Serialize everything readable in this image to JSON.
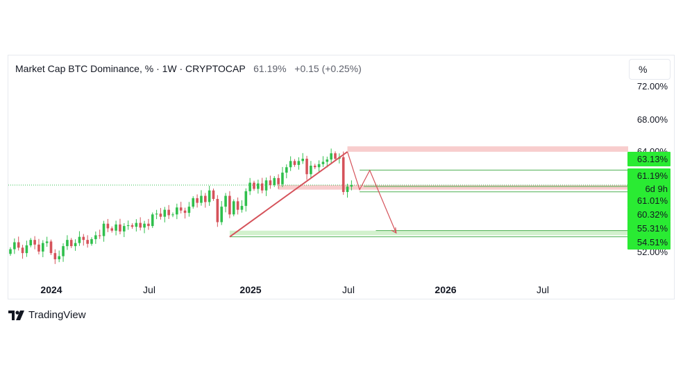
{
  "header": {
    "title": "Market Cap BTC Dominance, % · 1W · CRYPTOCAP",
    "last": "61.19%",
    "change": "+0.15 (+0.25%)"
  },
  "unit_button": "%",
  "brand": "TradingView",
  "colors": {
    "up": "#26a69a",
    "up_candle": "#2fbf4c",
    "down": "#d5525a",
    "resistance_zone": "#f7c8c8",
    "support_zone": "#cdf0c8",
    "green_tag": "#2aeb33"
  },
  "chart_data": {
    "type": "candlestick",
    "symbol": "Market Cap BTC Dominance",
    "unit": "%",
    "timeframe": "1W",
    "x_tick_labels": [
      "2024",
      "Jul",
      "2025",
      "Jul",
      "2026",
      "Jul"
    ],
    "y_tick_labels": [
      "72.00%",
      "68.00%",
      "64.00%",
      "52.00%"
    ],
    "price_tags": [
      {
        "text": "63.13%",
        "value": 63.13
      },
      {
        "text": "61.19%",
        "value": 61.19
      },
      {
        "text": "6d 9h"
      },
      {
        "text": "61.01%",
        "value": 61.01
      },
      {
        "text": "60.32%",
        "value": 60.32
      },
      {
        "text": "55.31%",
        "value": 55.31
      },
      {
        "text": "54.51%",
        "value": 54.51
      }
    ],
    "zones": [
      {
        "kind": "resistance",
        "from": 65.5,
        "to": 66.2
      },
      {
        "kind": "resistance",
        "from": 60.6,
        "to": 61.2
      },
      {
        "kind": "support",
        "from": 54.7,
        "to": 55.3
      }
    ],
    "levels": [
      63.13,
      61.01,
      60.32,
      55.31,
      54.51
    ],
    "close": 61.19,
    "weekly_closes": [
      52.9,
      53.8,
      53.1,
      52.4,
      53.4,
      54.1,
      53.5,
      52.6,
      53.7,
      53.9,
      52.4,
      51.6,
      52.0,
      53.3,
      54.1,
      53.3,
      53.7,
      54.5,
      54.1,
      53.6,
      54.2,
      54.7,
      54.6,
      56.2,
      55.6,
      55.3,
      56.1,
      55.2,
      55.9,
      56.0,
      55.8,
      56.3,
      55.7,
      56.2,
      55.9,
      57.4,
      57.5,
      57.1,
      58.0,
      57.3,
      57.4,
      58.3,
      57.9,
      57.6,
      58.4,
      59.5,
      58.9,
      59.8,
      59.0,
      60.5,
      59.4,
      56.4,
      58.4,
      59.8,
      57.4,
      59.1,
      58.0,
      58.5,
      60.4,
      61.5,
      60.7,
      61.4,
      60.5,
      61.8,
      61.2,
      62.1,
      61.3,
      62.8,
      63.5,
      64.3,
      63.8,
      64.3,
      64.6,
      62.6,
      63.7,
      63.5,
      63.9,
      64.2,
      64.5,
      65.3,
      64.6,
      64.8,
      60.3,
      61.0,
      61.19
    ]
  }
}
